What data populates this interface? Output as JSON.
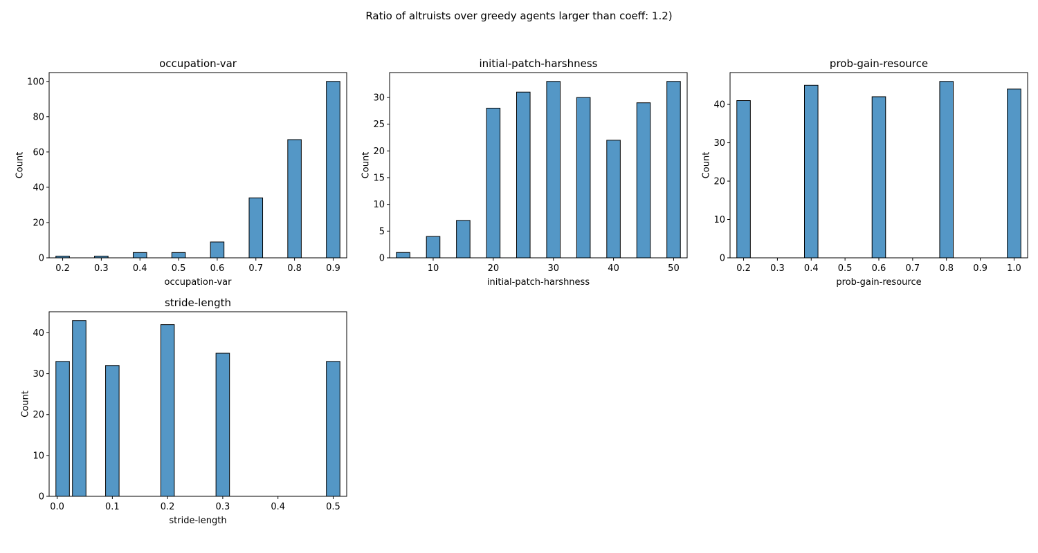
{
  "figure": {
    "title": "Ratio of altruists over greedy agents larger than coeff: 1.2)"
  },
  "chart_data": [
    {
      "type": "bar",
      "title": "occupation-var",
      "xlabel": "occupation-var",
      "ylabel": "Count",
      "xlim": [
        0.165,
        0.935
      ],
      "ylim": [
        0,
        105
      ],
      "xticks": [
        0.2,
        0.3,
        0.4,
        0.5,
        0.6,
        0.7,
        0.8,
        0.9
      ],
      "yticks": [
        0,
        20,
        40,
        60,
        80,
        100
      ],
      "bar_color": "#5497c6",
      "bar_width": 0.035,
      "bars": [
        {
          "x": 0.2,
          "value": 1
        },
        {
          "x": 0.3,
          "value": 1
        },
        {
          "x": 0.4,
          "value": 3
        },
        {
          "x": 0.5,
          "value": 3
        },
        {
          "x": 0.6,
          "value": 9
        },
        {
          "x": 0.7,
          "value": 34
        },
        {
          "x": 0.8,
          "value": 67
        },
        {
          "x": 0.9,
          "value": 100
        }
      ]
    },
    {
      "type": "bar",
      "title": "initial-patch-harshness",
      "xlabel": "initial-patch-harshness",
      "ylabel": "Count",
      "xlim": [
        2.75,
        52.25
      ],
      "ylim": [
        0,
        34.65
      ],
      "xticks": [
        10,
        20,
        30,
        40,
        50
      ],
      "yticks": [
        0,
        5,
        10,
        15,
        20,
        25,
        30
      ],
      "bar_color": "#5497c6",
      "bar_width": 2.25,
      "bars": [
        {
          "x": 5,
          "value": 1
        },
        {
          "x": 10,
          "value": 4
        },
        {
          "x": 15,
          "value": 7
        },
        {
          "x": 20,
          "value": 28
        },
        {
          "x": 25,
          "value": 31
        },
        {
          "x": 30,
          "value": 33
        },
        {
          "x": 35,
          "value": 30
        },
        {
          "x": 40,
          "value": 22
        },
        {
          "x": 45,
          "value": 29
        },
        {
          "x": 50,
          "value": 33
        }
      ]
    },
    {
      "type": "bar",
      "title": "prob-gain-resource",
      "xlabel": "prob-gain-resource",
      "ylabel": "Count",
      "xlim": [
        0.16,
        1.04
      ],
      "ylim": [
        0,
        48.3
      ],
      "xticks": [
        0.2,
        0.3,
        0.4,
        0.5,
        0.6,
        0.7,
        0.8,
        0.9,
        1.0
      ],
      "yticks": [
        0,
        10,
        20,
        30,
        40
      ],
      "bar_color": "#5497c6",
      "bar_width": 0.04,
      "bars": [
        {
          "x": 0.2,
          "value": 41
        },
        {
          "x": 0.4,
          "value": 45
        },
        {
          "x": 0.6,
          "value": 42
        },
        {
          "x": 0.8,
          "value": 46
        },
        {
          "x": 1.0,
          "value": 44
        }
      ]
    },
    {
      "type": "bar",
      "title": "stride-length",
      "xlabel": "stride-length",
      "ylabel": "Count",
      "xlim": [
        -0.0145,
        0.5245
      ],
      "ylim": [
        0,
        45.15
      ],
      "xticks": [
        0.0,
        0.1,
        0.2,
        0.3,
        0.4,
        0.5
      ],
      "yticks": [
        0,
        10,
        20,
        30,
        40
      ],
      "bar_color": "#5497c6",
      "bar_width": 0.0245,
      "bars": [
        {
          "x": 0.01,
          "value": 33
        },
        {
          "x": 0.04,
          "value": 43
        },
        {
          "x": 0.1,
          "value": 32
        },
        {
          "x": 0.2,
          "value": 42
        },
        {
          "x": 0.3,
          "value": 35
        },
        {
          "x": 0.5,
          "value": 33
        }
      ]
    }
  ]
}
